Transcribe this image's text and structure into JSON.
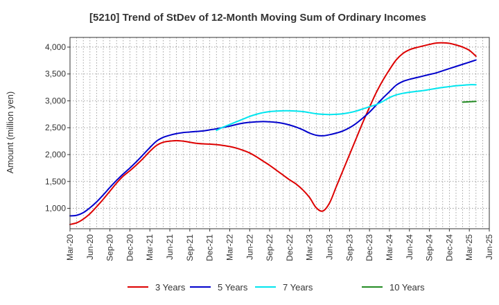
{
  "chart_data": {
    "type": "line",
    "title": "[5210]  Trend of StDev of 12-Month Moving Sum of Ordinary Incomes",
    "xlabel": "",
    "ylabel": "Amount (million yen)",
    "ylim": [
      620,
      4180
    ],
    "y_ticks": [
      1000,
      1500,
      2000,
      2500,
      3000,
      3500,
      4000
    ],
    "y_tick_labels": [
      "1,000",
      "1,500",
      "2,000",
      "2,500",
      "3,000",
      "3,500",
      "4,000"
    ],
    "x_tick_labels": [
      "Mar-20",
      "Jun-20",
      "Sep-20",
      "Dec-20",
      "Mar-21",
      "Jun-21",
      "Sep-21",
      "Dec-21",
      "Mar-22",
      "Jun-22",
      "Sep-22",
      "Dec-22",
      "Mar-23",
      "Jun-23",
      "Sep-23",
      "Dec-23",
      "Mar-24",
      "Jun-24",
      "Sep-24",
      "Dec-24",
      "Mar-25",
      "Jun-25"
    ],
    "x_range_months": [
      0,
      63
    ],
    "grid": true,
    "legend_position": "bottom",
    "series": [
      {
        "name": "3 Years",
        "color": "#dd0000",
        "points": [
          [
            0,
            700
          ],
          [
            1,
            730
          ],
          [
            2,
            800
          ],
          [
            3,
            900
          ],
          [
            4,
            1030
          ],
          [
            5,
            1170
          ],
          [
            6,
            1320
          ],
          [
            7,
            1470
          ],
          [
            8,
            1600
          ],
          [
            9,
            1700
          ],
          [
            10,
            1810
          ],
          [
            11,
            1930
          ],
          [
            12,
            2060
          ],
          [
            13,
            2170
          ],
          [
            14,
            2230
          ],
          [
            15,
            2250
          ],
          [
            16,
            2260
          ],
          [
            17,
            2250
          ],
          [
            18,
            2230
          ],
          [
            19,
            2210
          ],
          [
            20,
            2200
          ],
          [
            21,
            2195
          ],
          [
            22,
            2185
          ],
          [
            23,
            2170
          ],
          [
            24,
            2150
          ],
          [
            25,
            2120
          ],
          [
            26,
            2080
          ],
          [
            27,
            2030
          ],
          [
            28,
            1960
          ],
          [
            29,
            1880
          ],
          [
            30,
            1800
          ],
          [
            31,
            1710
          ],
          [
            32,
            1620
          ],
          [
            33,
            1530
          ],
          [
            34,
            1450
          ],
          [
            35,
            1340
          ],
          [
            36,
            1200
          ],
          [
            37,
            1010
          ],
          [
            38,
            950
          ],
          [
            39,
            1100
          ],
          [
            40,
            1400
          ],
          [
            41,
            1700
          ],
          [
            42,
            2000
          ],
          [
            43,
            2300
          ],
          [
            44,
            2600
          ],
          [
            45,
            2880
          ],
          [
            46,
            3150
          ],
          [
            47,
            3380
          ],
          [
            48,
            3580
          ],
          [
            49,
            3760
          ],
          [
            50,
            3880
          ],
          [
            51,
            3950
          ],
          [
            52,
            3990
          ],
          [
            53,
            4020
          ],
          [
            54,
            4050
          ],
          [
            55,
            4075
          ],
          [
            56,
            4080
          ],
          [
            57,
            4070
          ],
          [
            58,
            4040
          ],
          [
            59,
            4000
          ],
          [
            60,
            3940
          ],
          [
            61,
            3830
          ]
        ]
      },
      {
        "name": "5 Years",
        "color": "#0000cc",
        "points": [
          [
            0,
            860
          ],
          [
            1,
            870
          ],
          [
            2,
            920
          ],
          [
            3,
            1010
          ],
          [
            4,
            1120
          ],
          [
            5,
            1250
          ],
          [
            6,
            1390
          ],
          [
            7,
            1520
          ],
          [
            8,
            1640
          ],
          [
            9,
            1750
          ],
          [
            10,
            1870
          ],
          [
            11,
            2000
          ],
          [
            12,
            2130
          ],
          [
            13,
            2250
          ],
          [
            14,
            2320
          ],
          [
            15,
            2360
          ],
          [
            16,
            2390
          ],
          [
            17,
            2410
          ],
          [
            18,
            2420
          ],
          [
            19,
            2430
          ],
          [
            20,
            2440
          ],
          [
            21,
            2460
          ],
          [
            22,
            2480
          ],
          [
            23,
            2505
          ],
          [
            24,
            2530
          ],
          [
            25,
            2560
          ],
          [
            26,
            2585
          ],
          [
            27,
            2600
          ],
          [
            28,
            2610
          ],
          [
            29,
            2615
          ],
          [
            30,
            2610
          ],
          [
            31,
            2600
          ],
          [
            32,
            2580
          ],
          [
            33,
            2550
          ],
          [
            34,
            2510
          ],
          [
            35,
            2460
          ],
          [
            36,
            2400
          ],
          [
            37,
            2360
          ],
          [
            38,
            2350
          ],
          [
            39,
            2370
          ],
          [
            40,
            2400
          ],
          [
            41,
            2440
          ],
          [
            42,
            2500
          ],
          [
            43,
            2580
          ],
          [
            44,
            2680
          ],
          [
            45,
            2790
          ],
          [
            46,
            2920
          ],
          [
            47,
            3050
          ],
          [
            48,
            3170
          ],
          [
            49,
            3290
          ],
          [
            50,
            3360
          ],
          [
            51,
            3400
          ],
          [
            52,
            3430
          ],
          [
            53,
            3460
          ],
          [
            54,
            3490
          ],
          [
            55,
            3520
          ],
          [
            56,
            3560
          ],
          [
            57,
            3600
          ],
          [
            58,
            3640
          ],
          [
            59,
            3680
          ],
          [
            60,
            3720
          ],
          [
            61,
            3760
          ]
        ]
      },
      {
        "name": "7 Years",
        "color": "#00e5ee",
        "points": [
          [
            22,
            2450
          ],
          [
            23,
            2510
          ],
          [
            24,
            2560
          ],
          [
            25,
            2610
          ],
          [
            26,
            2660
          ],
          [
            27,
            2710
          ],
          [
            28,
            2750
          ],
          [
            29,
            2780
          ],
          [
            30,
            2800
          ],
          [
            31,
            2810
          ],
          [
            32,
            2815
          ],
          [
            33,
            2815
          ],
          [
            34,
            2810
          ],
          [
            35,
            2800
          ],
          [
            36,
            2780
          ],
          [
            37,
            2760
          ],
          [
            38,
            2750
          ],
          [
            39,
            2745
          ],
          [
            40,
            2750
          ],
          [
            41,
            2760
          ],
          [
            42,
            2780
          ],
          [
            43,
            2810
          ],
          [
            44,
            2850
          ],
          [
            45,
            2890
          ],
          [
            46,
            2930
          ],
          [
            47,
            2990
          ],
          [
            48,
            3060
          ],
          [
            49,
            3110
          ],
          [
            50,
            3140
          ],
          [
            51,
            3160
          ],
          [
            52,
            3175
          ],
          [
            53,
            3190
          ],
          [
            54,
            3210
          ],
          [
            55,
            3230
          ],
          [
            56,
            3250
          ],
          [
            57,
            3265
          ],
          [
            58,
            3280
          ],
          [
            59,
            3290
          ],
          [
            60,
            3300
          ],
          [
            61,
            3300
          ]
        ]
      },
      {
        "name": "10 Years",
        "color": "#228b22",
        "points": [
          [
            59,
            2975
          ],
          [
            61,
            2990
          ]
        ]
      }
    ]
  }
}
